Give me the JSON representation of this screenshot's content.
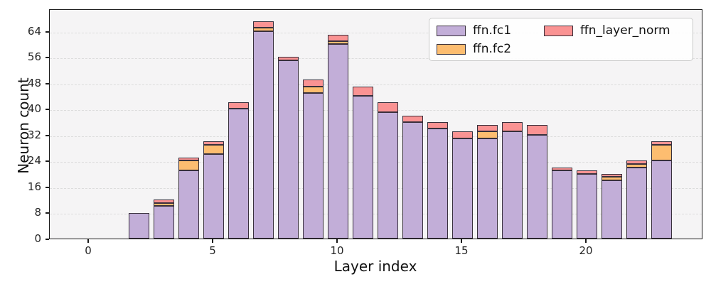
{
  "figure": {
    "xlabel": "Layer index",
    "ylabel": "Neuron count",
    "yticks": [
      0,
      8,
      16,
      24,
      32,
      40,
      48,
      56,
      64
    ],
    "xticks": [
      0,
      5,
      10,
      15,
      20
    ],
    "background_color": "#f5f4f5",
    "grid_color": "#dcdcdc",
    "bar_edge_color": "#38303c"
  },
  "legend": {
    "items": [
      {
        "label": "ffn.fc1",
        "color": "#c2aed8"
      },
      {
        "label": "ffn.fc2",
        "color": "#fdbd70"
      },
      {
        "label": "ffn_layer_norm",
        "color": "#fa9393"
      }
    ]
  },
  "chart_data": {
    "type": "bar",
    "stacked": true,
    "title": "",
    "xlabel": "Layer index",
    "ylabel": "Neuron count",
    "categories": [
      0,
      1,
      2,
      3,
      4,
      5,
      6,
      7,
      8,
      9,
      10,
      11,
      12,
      13,
      14,
      15,
      16,
      17,
      18,
      19,
      20,
      21,
      22,
      23
    ],
    "series": [
      {
        "name": "ffn.fc1",
        "color": "#c2aed8",
        "values": [
          0,
          0,
          8,
          10,
          21,
          26,
          40,
          64,
          55,
          45,
          60,
          44,
          39,
          36,
          34,
          31,
          31,
          33,
          32,
          21,
          20,
          18,
          22,
          24
        ]
      },
      {
        "name": "ffn.fc2",
        "color": "#fdbd70",
        "values": [
          0,
          0,
          0,
          1,
          3,
          3,
          0,
          1,
          0,
          2,
          1,
          0,
          0,
          0,
          0,
          0,
          2,
          0,
          0,
          0,
          0,
          1,
          1,
          5
        ]
      },
      {
        "name": "ffn_layer_norm",
        "color": "#fa9393",
        "values": [
          0,
          0,
          0,
          1,
          1,
          1,
          2,
          2,
          1,
          2,
          2,
          3,
          3,
          2,
          2,
          2,
          2,
          3,
          3,
          1,
          1,
          1,
          1,
          1
        ]
      }
    ],
    "totals": [
      0,
      0,
      8,
      12,
      25,
      30,
      42,
      67,
      56,
      49,
      63,
      47,
      42,
      38,
      36,
      33,
      35,
      36,
      35,
      22,
      21,
      20,
      24,
      30
    ],
    "ylim": [
      0,
      71
    ],
    "xlim": [
      -1.6,
      24.3
    ],
    "grid": "horizontal-dashed",
    "legend_position": "upper-right-inside",
    "legend_ncol": 2
  }
}
